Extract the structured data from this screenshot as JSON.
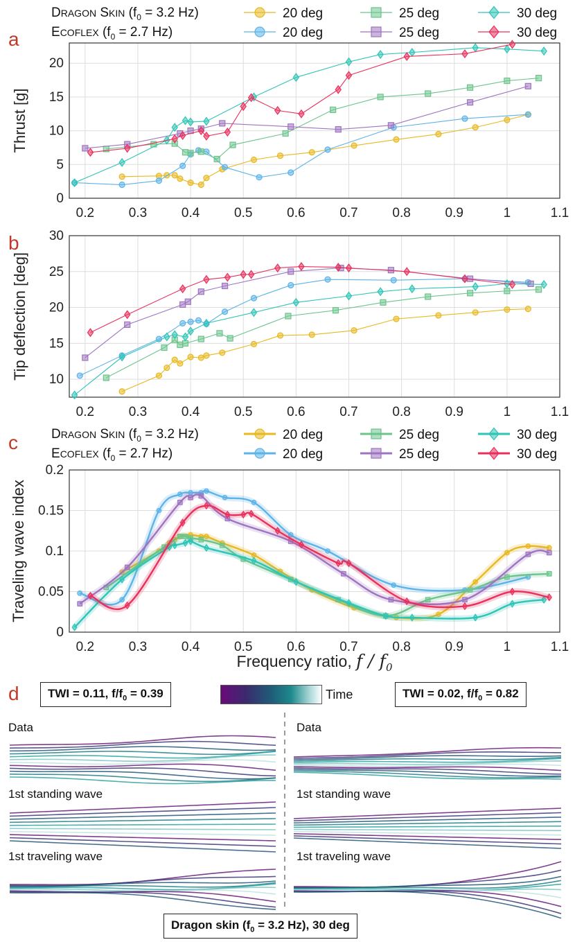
{
  "legend_top": {
    "mat1": {
      "name_first": "D",
      "name_rest": "RAGON",
      "name2_first": "S",
      "name2_rest": "KIN",
      "suffix": " (f",
      "sub": "0",
      "tail": " = 3.2 Hz)"
    },
    "mat2": {
      "name_first": "E",
      "name_rest": "COFLEX",
      "suffix": " (f",
      "sub": "0",
      "tail": " = 2.7 Hz)"
    }
  },
  "panel_d": {
    "letter": "d",
    "twi_left": "TWI = 0.11, f/f",
    "twi_left_sub": "0",
    "twi_left_tail": " = 0.39",
    "twi_right": "TWI = 0.02, f/f",
    "twi_right_sub": "0",
    "twi_right_tail": " = 0.82",
    "colorbar_label": "Time",
    "rows_left": [
      "Data",
      "1",
      "1"
    ],
    "row_labels": {
      "data": "Data",
      "standing": "st standing wave",
      "traveling": "st traveling wave",
      "ord": "1"
    },
    "footer": "Dragon skin (f",
    "footer_sub": "0",
    "footer_tail": " = 3.2 Hz), 30 deg"
  },
  "colors": {
    "ds20": "#E8B820",
    "ds25": "#6CC48C",
    "ds30": "#2EC4B6",
    "ec20": "#5BB3E8",
    "ec25": "#9E74C0",
    "ec30": "#E8305C",
    "panel_letter": "#C0392B",
    "grid": "#dddddd"
  },
  "chart_data": [
    {
      "id": "a",
      "letter": "a",
      "type": "line",
      "ylabel": "Thrust [g]",
      "xlabel": "",
      "xlim": [
        0.17,
        1.1
      ],
      "ylim": [
        0,
        23
      ],
      "xticks": [
        "0.2",
        "0.3",
        "0.4",
        "0.5",
        "0.6",
        "0.7",
        "0.8",
        "0.9",
        "1",
        "1.1"
      ],
      "xtick_values": [
        0.2,
        0.3,
        0.4,
        0.5,
        0.6,
        0.7,
        0.8,
        0.9,
        1.0,
        1.1
      ],
      "yticks": [
        "0",
        "5",
        "10",
        "15",
        "20"
      ],
      "ytick_values": [
        0,
        5,
        10,
        15,
        20
      ],
      "series": [
        {
          "name": "20 deg",
          "key": "ds20",
          "marker": "circle",
          "x": [
            0.27,
            0.34,
            0.355,
            0.37,
            0.38,
            0.4,
            0.42,
            0.43,
            0.46,
            0.52,
            0.57,
            0.63,
            0.71,
            0.79,
            0.87,
            0.94,
            1.0,
            1.04
          ],
          "y": [
            3.2,
            3.3,
            3.4,
            3.4,
            2.9,
            2.3,
            2.0,
            3.0,
            4.3,
            5.7,
            6.3,
            6.8,
            7.8,
            8.7,
            9.5,
            10.5,
            11.6,
            12.4
          ]
        },
        {
          "name": "20 deg",
          "key": "ec20",
          "marker": "circle",
          "x": [
            0.18,
            0.27,
            0.34,
            0.385,
            0.4,
            0.415,
            0.43,
            0.465,
            0.53,
            0.59,
            0.66,
            0.785,
            0.92,
            1.04
          ],
          "y": [
            2.3,
            2.0,
            2.6,
            4.8,
            6.5,
            7.1,
            6.9,
            4.6,
            3.1,
            3.8,
            7.2,
            10.5,
            11.8,
            12.4
          ]
        },
        {
          "name": "25 deg",
          "key": "ds25",
          "marker": "square",
          "x": [
            0.24,
            0.33,
            0.37,
            0.39,
            0.4,
            0.42,
            0.45,
            0.48,
            0.58,
            0.67,
            0.76,
            0.85,
            0.93,
            1.0,
            1.06
          ],
          "y": [
            7.3,
            8.0,
            8.1,
            6.8,
            6.7,
            6.9,
            5.8,
            7.9,
            9.6,
            13.1,
            15.0,
            15.5,
            16.4,
            17.4,
            17.8
          ]
        },
        {
          "name": "25 deg",
          "key": "ec25",
          "marker": "square",
          "x": [
            0.2,
            0.28,
            0.38,
            0.4,
            0.42,
            0.46,
            0.59,
            0.68,
            0.78,
            0.93,
            1.04
          ],
          "y": [
            7.4,
            8.0,
            9.6,
            10.0,
            10.3,
            11.1,
            10.6,
            10.2,
            10.8,
            14.2,
            16.6
          ]
        },
        {
          "name": "30 deg",
          "key": "ds30",
          "marker": "diamond",
          "x": [
            0.18,
            0.27,
            0.355,
            0.37,
            0.39,
            0.4,
            0.43,
            0.52,
            0.6,
            0.7,
            0.76,
            0.82,
            0.94,
            1.0,
            1.07
          ],
          "y": [
            2.3,
            5.3,
            8.6,
            10.5,
            11.5,
            11.3,
            11.4,
            15.0,
            17.9,
            20.2,
            21.3,
            21.6,
            22.3,
            22.1,
            21.8
          ]
        },
        {
          "name": "30 deg",
          "key": "ec30",
          "marker": "diamond",
          "x": [
            0.21,
            0.28,
            0.37,
            0.385,
            0.42,
            0.43,
            0.47,
            0.5,
            0.515,
            0.565,
            0.61,
            0.68,
            0.7,
            0.81,
            0.92,
            1.01
          ],
          "y": [
            6.8,
            7.4,
            8.8,
            9.3,
            10.0,
            9.2,
            9.8,
            13.6,
            14.9,
            13.0,
            12.5,
            16.1,
            18.2,
            21.0,
            21.4,
            22.8
          ]
        }
      ]
    },
    {
      "id": "b",
      "letter": "b",
      "type": "line",
      "ylabel": "Tip deflection [deg]",
      "xlabel": "",
      "xlim": [
        0.17,
        1.1
      ],
      "ylim": [
        7.5,
        30
      ],
      "xticks": [
        "0.2",
        "0.3",
        "0.4",
        "0.5",
        "0.6",
        "0.7",
        "0.8",
        "0.9",
        "1",
        "1.1"
      ],
      "xtick_values": [
        0.2,
        0.3,
        0.4,
        0.5,
        0.6,
        0.7,
        0.8,
        0.9,
        1.0,
        1.1
      ],
      "yticks": [
        "10",
        "15",
        "20",
        "25",
        "30"
      ],
      "ytick_values": [
        10,
        15,
        20,
        25,
        30
      ],
      "series": [
        {
          "name": "20 deg",
          "key": "ds20",
          "marker": "circle",
          "x": [
            0.27,
            0.34,
            0.355,
            0.37,
            0.38,
            0.4,
            0.42,
            0.43,
            0.46,
            0.52,
            0.57,
            0.63,
            0.71,
            0.79,
            0.87,
            0.94,
            1.0,
            1.04
          ],
          "y": [
            8.3,
            10.5,
            11.6,
            12.7,
            12.2,
            13.1,
            13.0,
            13.3,
            13.7,
            14.9,
            16.1,
            16.2,
            16.8,
            18.4,
            18.9,
            19.3,
            19.7,
            19.8
          ]
        },
        {
          "name": "20 deg",
          "key": "ec20",
          "marker": "circle",
          "x": [
            0.19,
            0.27,
            0.34,
            0.385,
            0.4,
            0.415,
            0.43,
            0.465,
            0.52,
            0.59,
            0.66,
            0.785,
            0.92,
            1.04
          ],
          "y": [
            10.5,
            13.3,
            15.6,
            17.8,
            18.0,
            18.2,
            17.7,
            19.4,
            21.3,
            23.1,
            23.9,
            23.8,
            24.0,
            23.5
          ]
        },
        {
          "name": "25 deg",
          "key": "ds25",
          "marker": "square",
          "x": [
            0.24,
            0.35,
            0.37,
            0.38,
            0.39,
            0.42,
            0.455,
            0.475,
            0.585,
            0.675,
            0.765,
            0.85,
            0.93,
            1.0,
            1.06
          ],
          "y": [
            10.2,
            14.4,
            15.5,
            14.8,
            15.0,
            15.6,
            16.4,
            15.7,
            18.8,
            19.6,
            20.7,
            21.5,
            22.0,
            22.3,
            22.5
          ]
        },
        {
          "name": "25 deg",
          "key": "ec25",
          "marker": "square",
          "x": [
            0.2,
            0.28,
            0.385,
            0.395,
            0.42,
            0.465,
            0.59,
            0.685,
            0.78,
            0.93,
            1.045
          ],
          "y": [
            13.0,
            17.6,
            20.4,
            20.8,
            22.2,
            23.0,
            25.0,
            25.5,
            25.2,
            24.0,
            23.3
          ]
        },
        {
          "name": "30 deg",
          "key": "ds30",
          "marker": "diamond",
          "x": [
            0.18,
            0.27,
            0.355,
            0.37,
            0.39,
            0.4,
            0.43,
            0.52,
            0.6,
            0.7,
            0.76,
            0.82,
            0.94,
            1.0,
            1.07
          ],
          "y": [
            7.8,
            13.1,
            15.9,
            16.2,
            15.9,
            16.7,
            17.8,
            19.3,
            20.7,
            21.6,
            22.2,
            22.6,
            22.9,
            23.3,
            23.2
          ]
        },
        {
          "name": "30 deg",
          "key": "ec30",
          "marker": "diamond",
          "x": [
            0.21,
            0.28,
            0.385,
            0.43,
            0.47,
            0.5,
            0.515,
            0.565,
            0.61,
            0.68,
            0.7,
            0.81,
            0.92,
            1.01
          ],
          "y": [
            16.5,
            19.0,
            22.6,
            23.9,
            24.2,
            24.6,
            24.6,
            25.5,
            25.7,
            25.6,
            25.5,
            25.0,
            24.0,
            23.2
          ]
        }
      ]
    },
    {
      "id": "c",
      "letter": "c",
      "type": "line",
      "ylabel": "Traveling wave index",
      "xlabel": "Frequency ratio, ",
      "xlabel_math": "f / f",
      "xlabel_sub": "0",
      "xlim": [
        0.17,
        1.1
      ],
      "ylim": [
        0,
        0.2
      ],
      "xticks": [
        "0.2",
        "0.3",
        "0.4",
        "0.5",
        "0.6",
        "0.7",
        "0.8",
        "0.9",
        "1",
        "1.1"
      ],
      "xtick_values": [
        0.2,
        0.3,
        0.4,
        0.5,
        0.6,
        0.7,
        0.8,
        0.9,
        1.0,
        1.1
      ],
      "yticks": [
        "0",
        "0.05",
        "0.1",
        "0.15",
        "0.2"
      ],
      "ytick_values": [
        0,
        0.05,
        0.1,
        0.15,
        0.2
      ],
      "series": [
        {
          "name": "20 deg",
          "key": "ds20",
          "marker": "circle",
          "x": [
            0.27,
            0.34,
            0.36,
            0.37,
            0.38,
            0.4,
            0.42,
            0.43,
            0.46,
            0.52,
            0.57,
            0.63,
            0.71,
            0.79,
            0.87,
            0.94,
            1.0,
            1.04,
            1.08
          ],
          "y": [
            0.074,
            0.1,
            0.11,
            0.114,
            0.118,
            0.12,
            0.118,
            0.118,
            0.11,
            0.095,
            0.075,
            0.052,
            0.03,
            0.018,
            0.022,
            0.062,
            0.098,
            0.106,
            0.104
          ]
        },
        {
          "name": "20 deg",
          "key": "ec20",
          "marker": "circle",
          "x": [
            0.19,
            0.27,
            0.34,
            0.38,
            0.4,
            0.42,
            0.43,
            0.465,
            0.52,
            0.59,
            0.66,
            0.785,
            0.92,
            1.04
          ],
          "y": [
            0.048,
            0.04,
            0.15,
            0.17,
            0.172,
            0.172,
            0.174,
            0.166,
            0.16,
            0.12,
            0.1,
            0.058,
            0.052,
            0.068
          ]
        },
        {
          "name": "25 deg",
          "key": "ds25",
          "marker": "square",
          "x": [
            0.24,
            0.35,
            0.38,
            0.39,
            0.4,
            0.42,
            0.46,
            0.5,
            0.59,
            0.68,
            0.77,
            0.85,
            0.93,
            1.0,
            1.08
          ],
          "y": [
            0.055,
            0.105,
            0.118,
            0.118,
            0.116,
            0.114,
            0.107,
            0.09,
            0.065,
            0.04,
            0.02,
            0.04,
            0.052,
            0.068,
            0.072
          ]
        },
        {
          "name": "25 deg",
          "key": "ec25",
          "marker": "square",
          "x": [
            0.19,
            0.28,
            0.38,
            0.4,
            0.42,
            0.47,
            0.59,
            0.69,
            0.78,
            0.92,
            1.04,
            1.08
          ],
          "y": [
            0.035,
            0.08,
            0.16,
            0.166,
            0.168,
            0.14,
            0.112,
            0.072,
            0.04,
            0.04,
            0.096,
            0.098
          ]
        },
        {
          "name": "30 deg",
          "key": "ds30",
          "marker": "diamond",
          "x": [
            0.18,
            0.27,
            0.36,
            0.37,
            0.39,
            0.4,
            0.43,
            0.52,
            0.6,
            0.7,
            0.77,
            0.82,
            0.94,
            1.01,
            1.07
          ],
          "y": [
            0.006,
            0.065,
            0.105,
            0.107,
            0.11,
            0.112,
            0.104,
            0.088,
            0.062,
            0.036,
            0.02,
            0.018,
            0.018,
            0.035,
            0.04
          ]
        },
        {
          "name": "30 deg",
          "key": "ec30",
          "marker": "diamond",
          "x": [
            0.21,
            0.28,
            0.385,
            0.43,
            0.47,
            0.5,
            0.515,
            0.565,
            0.61,
            0.68,
            0.7,
            0.81,
            0.92,
            1.01,
            1.08
          ],
          "y": [
            0.045,
            0.033,
            0.135,
            0.156,
            0.145,
            0.145,
            0.146,
            0.125,
            0.108,
            0.085,
            0.085,
            0.038,
            0.032,
            0.05,
            0.043
          ]
        }
      ]
    }
  ]
}
